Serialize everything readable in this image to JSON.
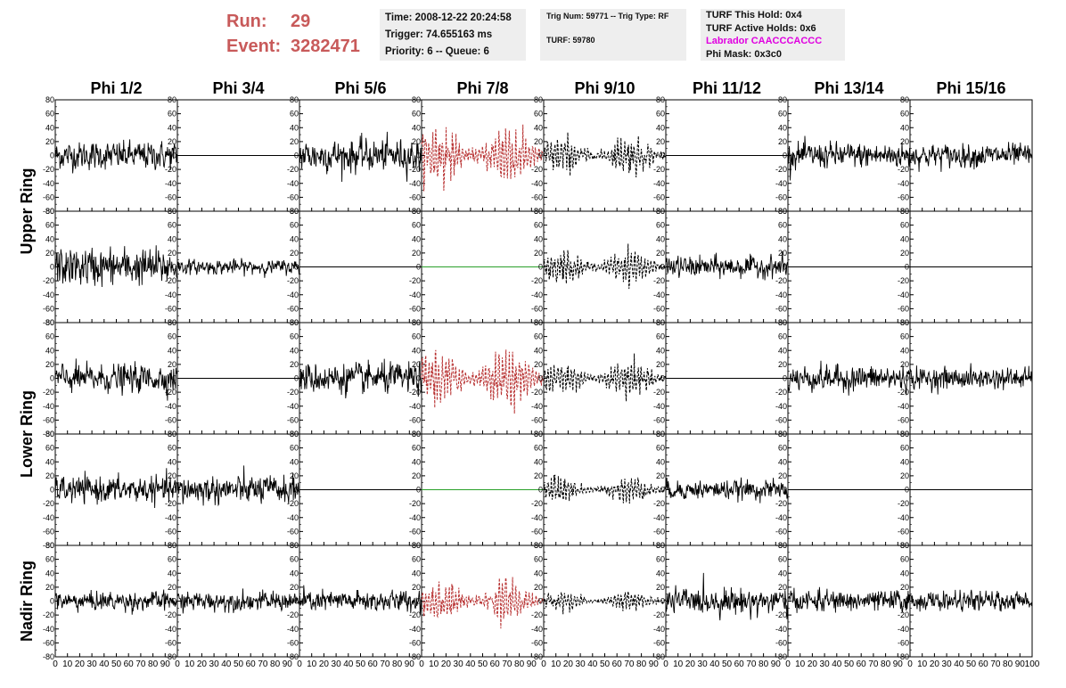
{
  "header": {
    "run_label": "Run:",
    "run_value": "29",
    "event_label": "Event:",
    "event_value": "3282471",
    "time_line": "Time: 2008-12-22 20:24:58",
    "trigger_line": "Trigger: 74.655163 ms",
    "priority_line": "Priority: 6 -- Queue: 6",
    "trig_num_line": "Trig Num: 59771 -- Trig Type: RF",
    "turf_line": "TURF: 59780",
    "turf_hold_line": "TURF This Hold: 0x4",
    "turf_active_line": "TURF Active Holds: 0x6",
    "labrador_line": "Labrador CAACCCACCC",
    "phi_mask_line": "Phi Mask: 0x3c0"
  },
  "chart_data": {
    "type": "line",
    "columns": [
      "Phi 1/2",
      "Phi 3/4",
      "Phi 5/6",
      "Phi 7/8",
      "Phi 9/10",
      "Phi 11/12",
      "Phi 13/14",
      "Phi 15/16"
    ],
    "ring_labels": [
      {
        "text": "Upper Ring",
        "rows": [
          0,
          1
        ]
      },
      {
        "text": "Lower Ring",
        "rows": [
          2,
          3
        ]
      },
      {
        "text": "Nadir Ring",
        "rows": [
          4
        ]
      }
    ],
    "xlim": [
      0,
      100
    ],
    "ylim": [
      -80,
      80
    ],
    "x_ticks": [
      "0",
      "10",
      "20",
      "30",
      "40",
      "50",
      "60",
      "70",
      "80",
      "90",
      "100"
    ],
    "y_ticks": [
      "80",
      "60",
      "40",
      "20",
      "0",
      "-20",
      "-40",
      "-60",
      "-80"
    ],
    "colors": {
      "normal": "#000000",
      "triggered": "#b83232",
      "flat_alt": "#2aa02a"
    },
    "cells": [
      [
        {
          "s": "n",
          "a": 12
        },
        {
          "s": "f",
          "a": 0
        },
        {
          "s": "n",
          "a": 14
        },
        {
          "s": "t",
          "a": 25
        },
        {
          "s": "d",
          "a": 16
        },
        {
          "s": "f",
          "a": 0
        },
        {
          "s": "n",
          "a": 11
        },
        {
          "s": "n",
          "a": 10
        }
      ],
      [
        {
          "s": "n",
          "a": 16
        },
        {
          "s": "n",
          "a": 6
        },
        {
          "s": "f",
          "a": 0
        },
        {
          "s": "g",
          "a": 0
        },
        {
          "s": "d",
          "a": 14
        },
        {
          "s": "n",
          "a": 9
        },
        {
          "s": "f",
          "a": 0
        },
        {
          "s": "f",
          "a": 0
        }
      ],
      [
        {
          "s": "n",
          "a": 12
        },
        {
          "s": "f",
          "a": 0
        },
        {
          "s": "n",
          "a": 13
        },
        {
          "s": "t",
          "a": 24
        },
        {
          "s": "d",
          "a": 15
        },
        {
          "s": "f",
          "a": 0
        },
        {
          "s": "n",
          "a": 11
        },
        {
          "s": "n",
          "a": 9
        }
      ],
      [
        {
          "s": "n",
          "a": 11
        },
        {
          "s": "n",
          "a": 12
        },
        {
          "s": "f",
          "a": 0
        },
        {
          "s": "g",
          "a": 0
        },
        {
          "s": "d",
          "a": 11
        },
        {
          "s": "n",
          "a": 8
        },
        {
          "s": "f",
          "a": 0
        },
        {
          "s": "f",
          "a": 0
        }
      ],
      [
        {
          "s": "n",
          "a": 8
        },
        {
          "s": "n",
          "a": 8
        },
        {
          "s": "n",
          "a": 9
        },
        {
          "s": "t",
          "a": 16
        },
        {
          "s": "d",
          "a": 8
        },
        {
          "s": "n",
          "a": 11
        },
        {
          "s": "n",
          "a": 9
        },
        {
          "s": "n",
          "a": 8
        }
      ]
    ]
  }
}
